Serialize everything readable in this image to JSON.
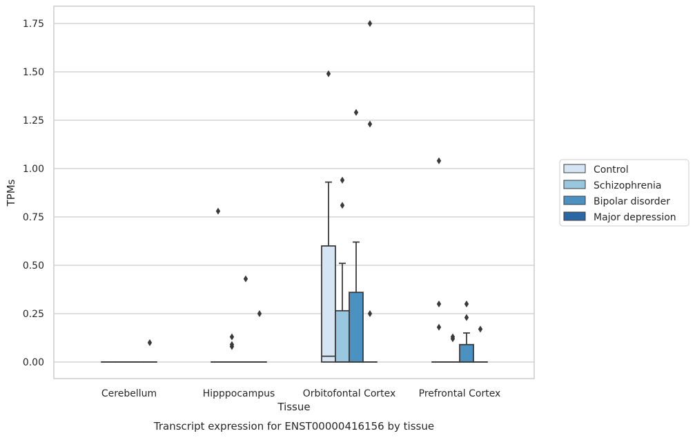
{
  "chart_data": {
    "type": "boxplot",
    "caption": "Transcript expression for ENST00000416156 by tissue",
    "xlabel": "Tissue",
    "ylabel": "TPMs",
    "ylim": [
      -0.08,
      1.84
    ],
    "yticks": [
      0.0,
      0.25,
      0.5,
      0.75,
      1.0,
      1.25,
      1.5,
      1.75
    ],
    "ytick_labels": [
      "0.00",
      "0.25",
      "0.50",
      "0.75",
      "1.00",
      "1.25",
      "1.50",
      "1.75"
    ],
    "grid": true,
    "legend_position": "outside-right",
    "categories": [
      "Cerebellum",
      "Hipppocampus",
      "Orbitofontal Cortex",
      "Prefrontal Cortex"
    ],
    "series": [
      {
        "name": "Control",
        "color": "#d6e5f4",
        "boxes": [
          {
            "whislo": 0,
            "q1": 0,
            "med": 0,
            "q3": 0,
            "whishi": 0,
            "fliers": []
          },
          {
            "whislo": 0,
            "q1": 0,
            "med": 0,
            "q3": 0,
            "whishi": 0,
            "fliers": [
              0.78
            ]
          },
          {
            "whislo": 0,
            "q1": 0,
            "med": 0.03,
            "q3": 0.6,
            "whishi": 0.93,
            "fliers": [
              1.49
            ]
          },
          {
            "whislo": 0,
            "q1": 0,
            "med": 0,
            "q3": 0,
            "whishi": 0,
            "fliers": [
              1.04,
              0.3,
              0.18
            ]
          }
        ]
      },
      {
        "name": "Schizophrenia",
        "color": "#9ac7e0",
        "boxes": [
          {
            "whislo": 0,
            "q1": 0,
            "med": 0,
            "q3": 0,
            "whishi": 0,
            "fliers": []
          },
          {
            "whislo": 0,
            "q1": 0,
            "med": 0,
            "q3": 0,
            "whishi": 0,
            "fliers": [
              0.13,
              0.09,
              0.08
            ]
          },
          {
            "whislo": 0,
            "q1": 0,
            "med": 0,
            "q3": 0.265,
            "whishi": 0.51,
            "fliers": [
              0.94,
              0.81
            ]
          },
          {
            "whislo": 0,
            "q1": 0,
            "med": 0,
            "q3": 0,
            "whishi": 0,
            "fliers": [
              0.13,
              0.12
            ]
          }
        ]
      },
      {
        "name": "Bipolar disorder",
        "color": "#4b92c3",
        "boxes": [
          {
            "whislo": 0,
            "q1": 0,
            "med": 0,
            "q3": 0,
            "whishi": 0,
            "fliers": []
          },
          {
            "whislo": 0,
            "q1": 0,
            "med": 0,
            "q3": 0,
            "whishi": 0,
            "fliers": [
              0.43
            ]
          },
          {
            "whislo": 0,
            "q1": 0,
            "med": 0,
            "q3": 0.36,
            "whishi": 0.62,
            "fliers": [
              1.29
            ]
          },
          {
            "whislo": 0,
            "q1": 0,
            "med": 0,
            "q3": 0.09,
            "whishi": 0.15,
            "fliers": [
              0.3,
              0.23
            ]
          }
        ]
      },
      {
        "name": "Major depression",
        "color": "#2a67a5",
        "boxes": [
          {
            "whislo": 0,
            "q1": 0,
            "med": 0,
            "q3": 0,
            "whishi": 0,
            "fliers": [
              0.1
            ]
          },
          {
            "whislo": 0,
            "q1": 0,
            "med": 0,
            "q3": 0,
            "whishi": 0,
            "fliers": [
              0.25
            ]
          },
          {
            "whislo": 0,
            "q1": 0,
            "med": 0,
            "q3": 0,
            "whishi": 0,
            "fliers": [
              1.75,
              1.23,
              0.25
            ]
          },
          {
            "whislo": 0,
            "q1": 0,
            "med": 0,
            "q3": 0,
            "whishi": 0,
            "fliers": [
              0.17
            ]
          }
        ]
      }
    ]
  }
}
